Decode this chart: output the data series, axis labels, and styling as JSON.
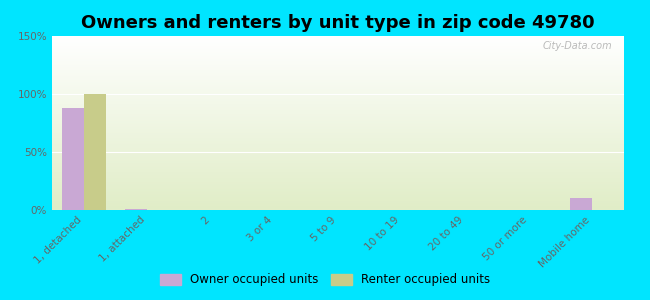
{
  "title": "Owners and renters by unit type in zip code 49780",
  "categories": [
    "1, detached",
    "1, attached",
    "2",
    "3 or 4",
    "5 to 9",
    "10 to 19",
    "20 to 49",
    "50 or more",
    "Mobile home"
  ],
  "owner_values": [
    88,
    1,
    0,
    0,
    0,
    0,
    0,
    0,
    10
  ],
  "renter_values": [
    100,
    0,
    0,
    0,
    0,
    0,
    0,
    0,
    0
  ],
  "owner_color": "#c9a8d4",
  "renter_color": "#c8cc8a",
  "background_outer": "#00e5ff",
  "yticks": [
    0,
    50,
    100,
    150
  ],
  "ylim": [
    0,
    150
  ],
  "title_fontsize": 13,
  "tick_fontsize": 7.5,
  "legend_labels": [
    "Owner occupied units",
    "Renter occupied units"
  ],
  "watermark": "City-Data.com",
  "bar_width": 0.35
}
